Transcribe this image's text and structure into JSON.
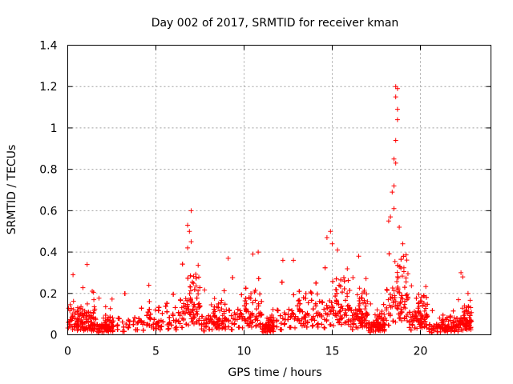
{
  "chart_data": {
    "type": "scatter",
    "title": "Day 002 of 2017, SRMTID for receiver kman",
    "xlabel": "GPS time / hours",
    "ylabel": "SRMTID / TECUs",
    "xlim": [
      0,
      24
    ],
    "ylim": [
      0,
      1.4
    ],
    "xticks": [
      "0",
      "5",
      "10",
      "15",
      "20"
    ],
    "yticks": [
      "0",
      "0.2",
      "0.4",
      "0.6",
      "0.8",
      "1",
      "1.2",
      "1.4"
    ],
    "grid": true,
    "marker": "+",
    "color": "#ff0000",
    "notable_points": [
      {
        "x": 0.3,
        "y": 0.29
      },
      {
        "x": 1.1,
        "y": 0.34
      },
      {
        "x": 4.6,
        "y": 0.24
      },
      {
        "x": 6.8,
        "y": 0.53
      },
      {
        "x": 7.0,
        "y": 0.6
      },
      {
        "x": 6.9,
        "y": 0.5
      },
      {
        "x": 7.0,
        "y": 0.45
      },
      {
        "x": 6.8,
        "y": 0.42
      },
      {
        "x": 9.1,
        "y": 0.37
      },
      {
        "x": 10.5,
        "y": 0.39
      },
      {
        "x": 10.8,
        "y": 0.4
      },
      {
        "x": 12.2,
        "y": 0.36
      },
      {
        "x": 12.8,
        "y": 0.36
      },
      {
        "x": 14.7,
        "y": 0.47
      },
      {
        "x": 14.9,
        "y": 0.5
      },
      {
        "x": 15.0,
        "y": 0.44
      },
      {
        "x": 15.3,
        "y": 0.41
      },
      {
        "x": 16.5,
        "y": 0.38
      },
      {
        "x": 18.2,
        "y": 0.55
      },
      {
        "x": 18.3,
        "y": 0.57
      },
      {
        "x": 18.4,
        "y": 0.69
      },
      {
        "x": 18.5,
        "y": 0.72
      },
      {
        "x": 18.5,
        "y": 0.85
      },
      {
        "x": 18.6,
        "y": 0.83
      },
      {
        "x": 18.6,
        "y": 0.94
      },
      {
        "x": 18.7,
        "y": 1.04
      },
      {
        "x": 18.7,
        "y": 1.09
      },
      {
        "x": 18.6,
        "y": 1.15
      },
      {
        "x": 18.7,
        "y": 1.19
      },
      {
        "x": 18.6,
        "y": 1.2
      },
      {
        "x": 18.5,
        "y": 0.61
      },
      {
        "x": 18.8,
        "y": 0.52
      },
      {
        "x": 19.0,
        "y": 0.44
      },
      {
        "x": 22.3,
        "y": 0.3
      },
      {
        "x": 22.4,
        "y": 0.28
      },
      {
        "x": 22.7,
        "y": 0.2
      }
    ],
    "bursts": [
      {
        "start": 0,
        "end": 1.6,
        "level": 0.09,
        "peak": 0.25
      },
      {
        "start": 1.6,
        "end": 2.6,
        "level": 0.05,
        "peak": 0.22
      },
      {
        "start": 2.6,
        "end": 6.3,
        "level": 0.08,
        "peak": 0.24
      },
      {
        "start": 6.3,
        "end": 7.5,
        "level": 0.17,
        "peak": 0.4
      },
      {
        "start": 7.5,
        "end": 9.0,
        "level": 0.09,
        "peak": 0.26
      },
      {
        "start": 9.0,
        "end": 11.0,
        "level": 0.12,
        "peak": 0.33
      },
      {
        "start": 11.0,
        "end": 11.7,
        "level": 0.05,
        "peak": 0.15
      },
      {
        "start": 11.7,
        "end": 14.3,
        "level": 0.12,
        "peak": 0.3
      },
      {
        "start": 14.3,
        "end": 16.0,
        "level": 0.16,
        "peak": 0.38
      },
      {
        "start": 16.0,
        "end": 17.0,
        "level": 0.12,
        "peak": 0.33
      },
      {
        "start": 17.0,
        "end": 18.0,
        "level": 0.06,
        "peak": 0.18
      },
      {
        "start": 18.0,
        "end": 19.3,
        "level": 0.22,
        "peak": 0.45
      },
      {
        "start": 19.3,
        "end": 20.4,
        "level": 0.11,
        "peak": 0.28
      },
      {
        "start": 20.4,
        "end": 22.0,
        "level": 0.05,
        "peak": 0.14
      },
      {
        "start": 22.0,
        "end": 22.9,
        "level": 0.08,
        "peak": 0.2
      }
    ]
  }
}
